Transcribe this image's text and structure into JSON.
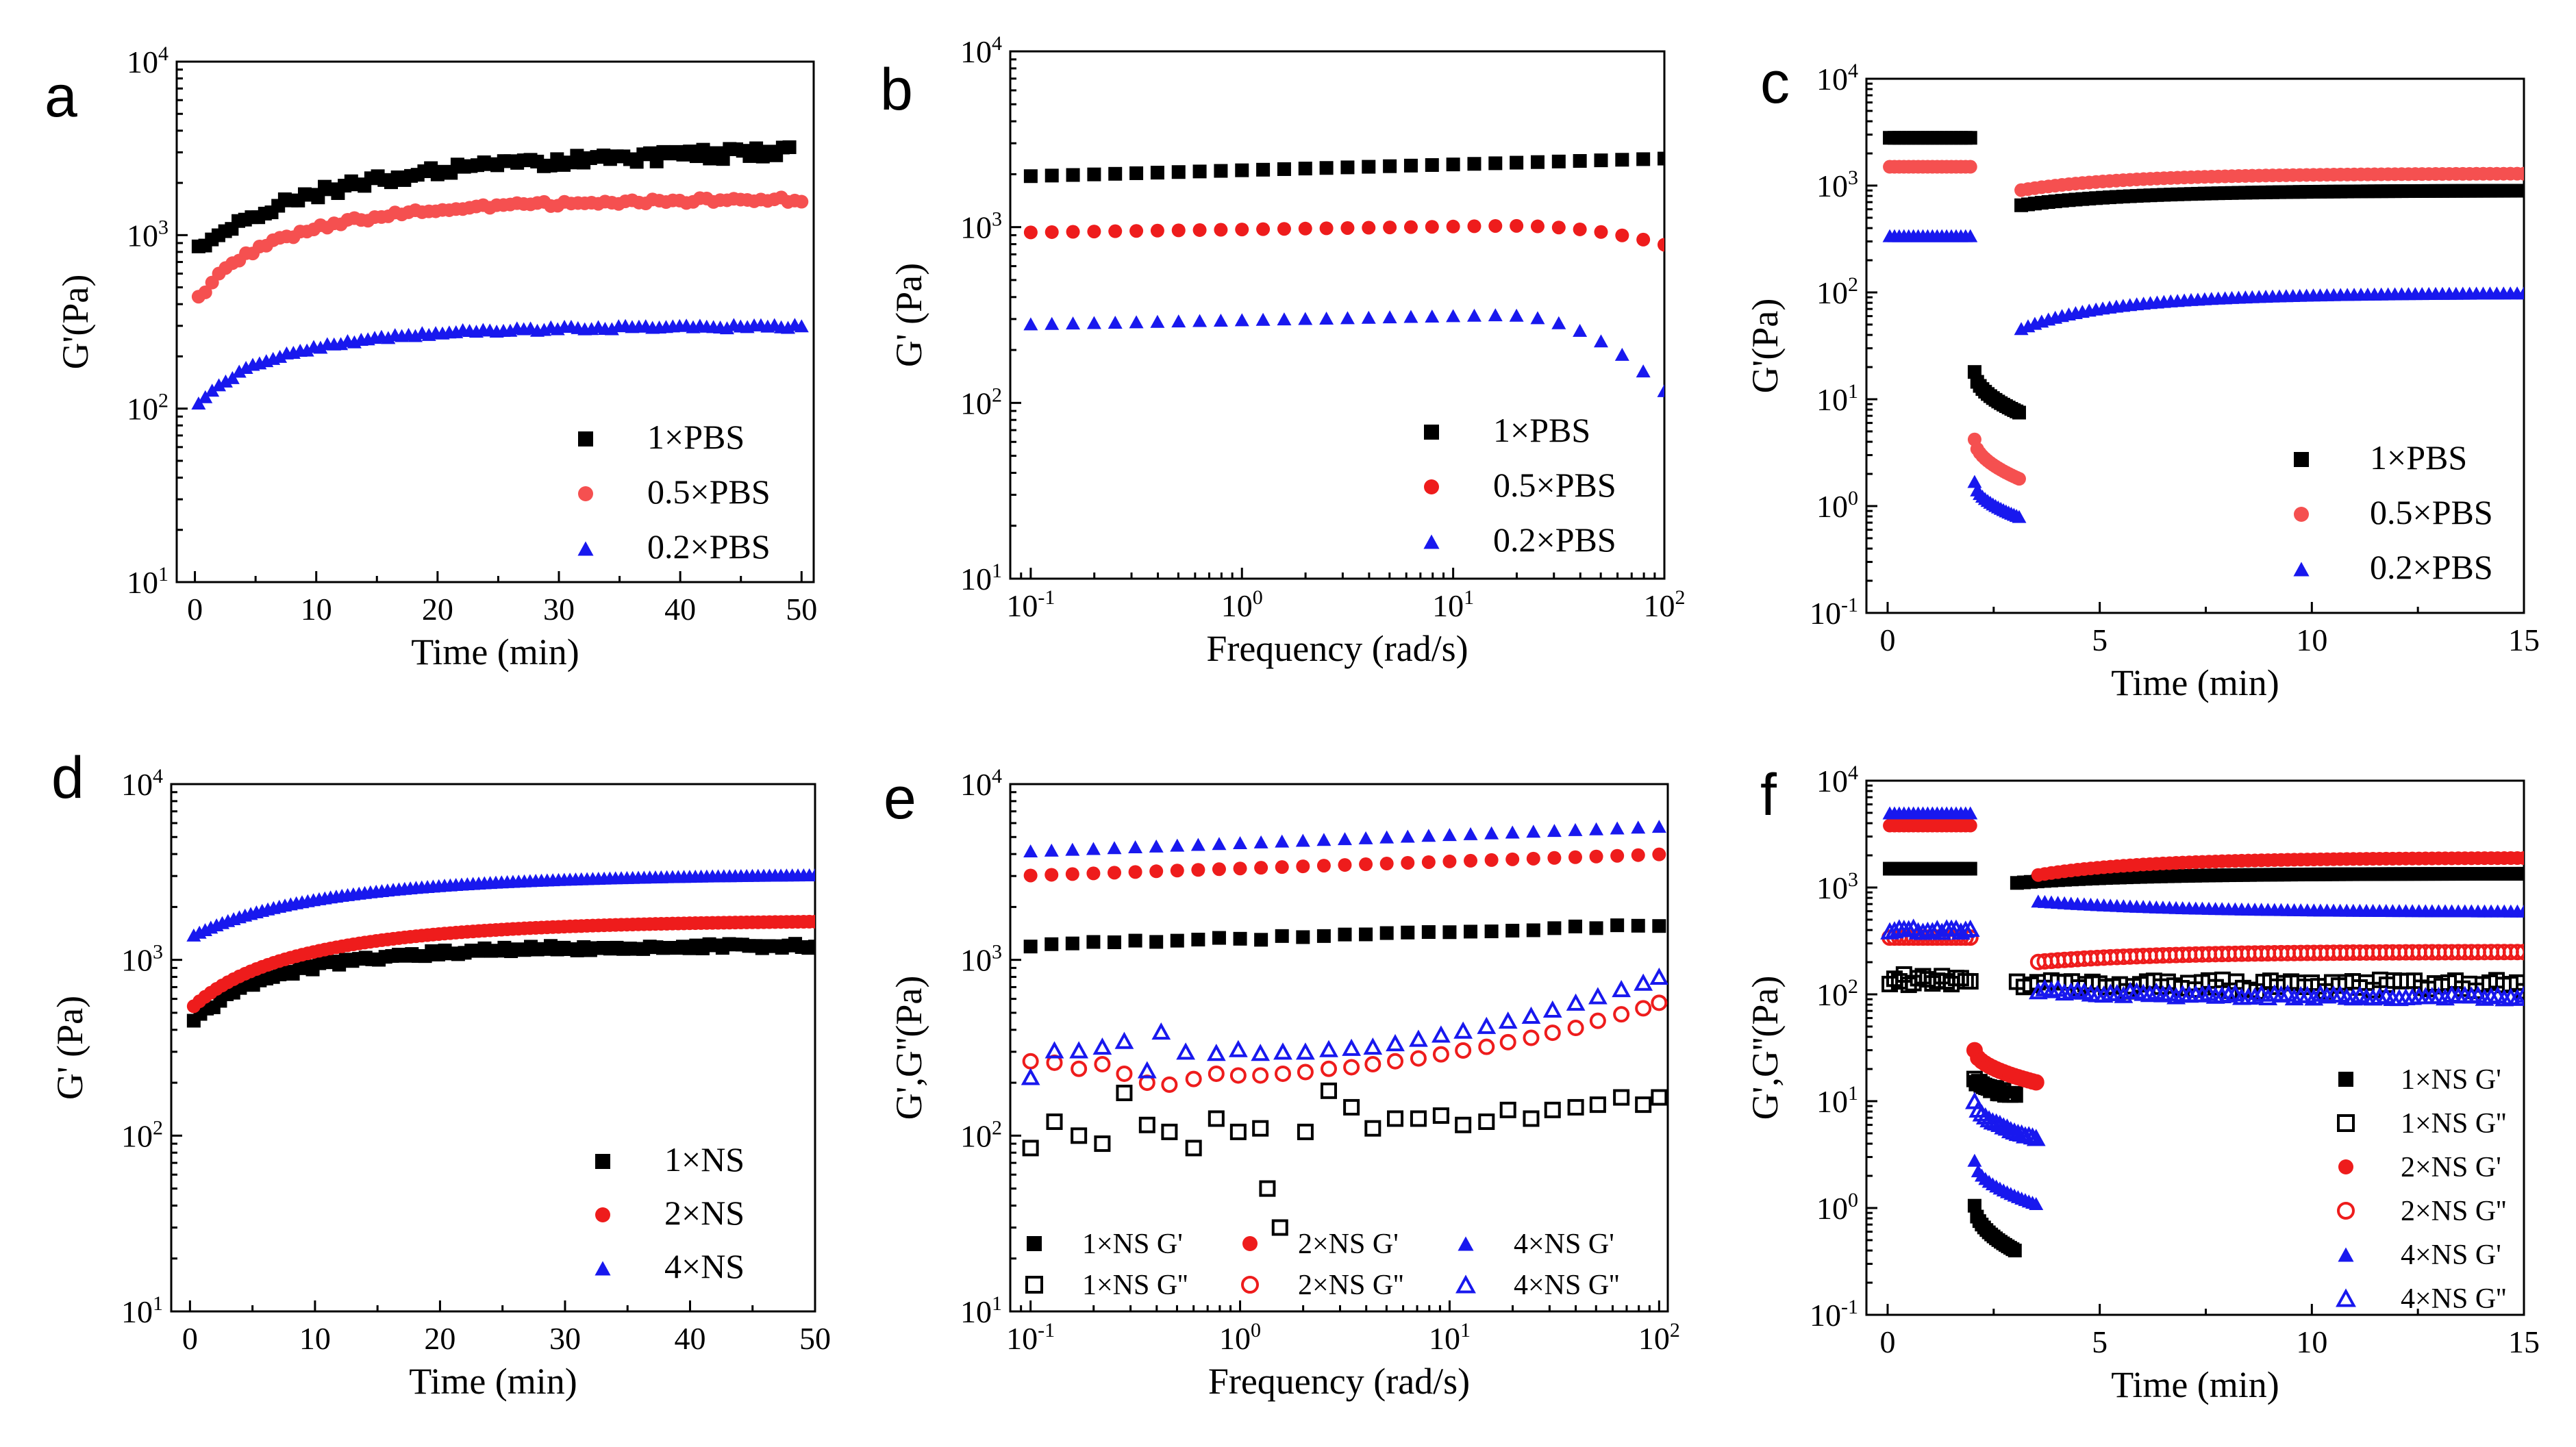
{
  "figure": {
    "colors": {
      "black": "#000000",
      "red": "#ee1c1c",
      "blue": "#1818ee",
      "lightred": "#f55050"
    }
  },
  "chart_data": [
    {
      "panel": "a",
      "type": "scatter",
      "xscale": "linear",
      "yscale": "log",
      "xlabel": "Time (min)",
      "ylabel": "G'(Pa)",
      "xlim": [
        -1.5,
        51
      ],
      "ylim": [
        10,
        10000
      ],
      "xticks": [
        0,
        10,
        20,
        30,
        40,
        50
      ],
      "yticks": [
        10,
        100,
        1000,
        10000
      ],
      "legend_position": "bottom-right",
      "series": [
        {
          "name": "1×PBS",
          "color": "#000000",
          "marker": "square",
          "filled": true,
          "curve": {
            "kind": "time",
            "x0": 0.3,
            "x1": 49,
            "n": 90,
            "a": 780,
            "b": 3000,
            "tau": 20,
            "noise": 0.06
          }
        },
        {
          "name": "0.5×PBS",
          "color": "#f55050",
          "marker": "circle",
          "filled": true,
          "curve": {
            "kind": "time",
            "x0": 0.3,
            "x1": 50,
            "n": 90,
            "a": 400,
            "b": 1600,
            "tau": 12,
            "noise": 0.03
          }
        },
        {
          "name": "0.2×PBS",
          "color": "#1818ee",
          "marker": "triangle",
          "filled": true,
          "curve": {
            "kind": "time",
            "x0": 0.3,
            "x1": 50,
            "n": 90,
            "a": 100,
            "b": 300,
            "tau": 10,
            "noise": 0.02
          }
        }
      ]
    },
    {
      "panel": "b",
      "type": "scatter",
      "xscale": "log",
      "yscale": "log",
      "xlabel": "Frequency (rad/s)",
      "ylabel": "G' (Pa)",
      "xlim": [
        0.08,
        100
      ],
      "ylim": [
        10,
        10000
      ],
      "xticks": [
        0.1,
        1,
        10,
        100
      ],
      "yticks": [
        10,
        100,
        1000,
        10000
      ],
      "legend_position": "bottom-right",
      "series": [
        {
          "name": "1×PBS",
          "color": "#000000",
          "marker": "square",
          "filled": true,
          "curve": {
            "kind": "freq",
            "n": 31,
            "logy0": 3.29,
            "logy1": 3.39,
            "drop": 0
          }
        },
        {
          "name": "0.5×PBS",
          "color": "#ee1c1c",
          "marker": "circle",
          "filled": true,
          "curve": {
            "kind": "freq",
            "n": 31,
            "logy0": 2.97,
            "logy1": 3.02,
            "drop": 0.12
          }
        },
        {
          "name": "0.2×PBS",
          "color": "#1818ee",
          "marker": "triangle",
          "filled": true,
          "curve": {
            "kind": "freq",
            "n": 31,
            "logy0": 2.45,
            "logy1": 2.52,
            "drop": 0.45
          }
        }
      ]
    },
    {
      "panel": "c",
      "type": "scatter",
      "xscale": "linear",
      "yscale": "log",
      "xlabel": "Time (min)",
      "ylabel": "G'(Pa)",
      "xlim": [
        -0.5,
        15
      ],
      "ylim": [
        0.1,
        10000
      ],
      "xticks": [
        0,
        5,
        10,
        15
      ],
      "yticks": [
        0.1,
        1,
        10,
        100,
        1000,
        10000
      ],
      "legend_position": "bottom-right",
      "series": [
        {
          "name": "1×PBS",
          "color": "#000000",
          "marker": "square",
          "filled": true,
          "curve": {
            "kind": "recovery",
            "pre": 2800,
            "brk0": 18,
            "brk1": 7.5,
            "rec0": 650,
            "rec1": 900,
            "noise": 0.0
          }
        },
        {
          "name": "0.5×PBS",
          "color": "#f55050",
          "marker": "circle",
          "filled": true,
          "curve": {
            "kind": "recovery",
            "pre": 1500,
            "brk0": 4.2,
            "brk1": 1.8,
            "rec0": 900,
            "rec1": 1300,
            "noise": 0.0
          }
        },
        {
          "name": "0.2×PBS",
          "color": "#1818ee",
          "marker": "triangle",
          "filled": true,
          "curve": {
            "kind": "recovery",
            "pre": 340,
            "brk0": 1.7,
            "brk1": 0.8,
            "rec0": 45,
            "rec1": 100,
            "noise": 0.0
          }
        }
      ]
    },
    {
      "panel": "d",
      "type": "scatter",
      "xscale": "linear",
      "yscale": "log",
      "xlabel": "Time (min)",
      "ylabel": "G' (Pa)",
      "xlim": [
        -1.5,
        50
      ],
      "ylim": [
        10,
        10000
      ],
      "xticks": [
        0,
        10,
        20,
        30,
        40,
        50
      ],
      "yticks": [
        10,
        100,
        1000,
        10000
      ],
      "legend_position": "bottom-right",
      "series": [
        {
          "name": "1×NS",
          "color": "#000000",
          "marker": "square",
          "filled": true,
          "curve": {
            "kind": "time",
            "x0": 0.3,
            "x1": 50,
            "n": 95,
            "a": 420,
            "b": 1200,
            "tau": 10,
            "noise": 0.03
          }
        },
        {
          "name": "2×NS",
          "color": "#ee1c1c",
          "marker": "circle",
          "filled": true,
          "curve": {
            "kind": "time",
            "x0": 0.3,
            "x1": 50,
            "n": 110,
            "a": 520,
            "b": 1650,
            "tau": 14,
            "noise": 0.0
          }
        },
        {
          "name": "4×NS",
          "color": "#1818ee",
          "marker": "triangle",
          "filled": true,
          "curve": {
            "kind": "time",
            "x0": 0.3,
            "x1": 50,
            "n": 110,
            "a": 1350,
            "b": 3050,
            "tau": 15,
            "noise": 0.0
          }
        }
      ]
    },
    {
      "panel": "e",
      "type": "scatter",
      "xscale": "log",
      "yscale": "log",
      "xlabel": "Frequency (rad/s)",
      "ylabel": "G',G''(Pa)",
      "xlim": [
        0.08,
        110
      ],
      "ylim": [
        10,
        10000
      ],
      "xticks": [
        0.1,
        1,
        10,
        100
      ],
      "yticks": [
        10,
        100,
        1000,
        10000
      ],
      "legend_position": "bottom",
      "series": [
        {
          "name": "1×NS G'",
          "color": "#000000",
          "marker": "square",
          "filled": true,
          "curve": {
            "kind": "freq",
            "n": 31,
            "logy0": 3.08,
            "logy1": 3.2,
            "drop": 0,
            "noise": 0.02
          }
        },
        {
          "name": "1×NS G''",
          "color": "#000000",
          "marker": "square",
          "filled": false,
          "points": [
            [
              0.1,
              85
            ],
            [
              0.13,
              120
            ],
            [
              0.17,
              100
            ],
            [
              0.22,
              90
            ],
            [
              0.28,
              175
            ],
            [
              0.36,
              115
            ],
            [
              0.46,
              105
            ],
            [
              0.6,
              85
            ],
            [
              0.77,
              125
            ],
            [
              0.98,
              105
            ],
            [
              1.25,
              110
            ],
            [
              1.35,
              50
            ],
            [
              1.55,
              30
            ],
            [
              2.05,
              105
            ],
            [
              2.65,
              180
            ],
            [
              3.4,
              145
            ],
            [
              4.3,
              110
            ],
            [
              5.5,
              125
            ],
            [
              7.1,
              125
            ],
            [
              9.1,
              130
            ],
            [
              11.6,
              115
            ],
            [
              15,
              120
            ],
            [
              19,
              140
            ],
            [
              24.5,
              125
            ],
            [
              31,
              140
            ],
            [
              40,
              145
            ],
            [
              51,
              150
            ],
            [
              66,
              165
            ],
            [
              84,
              150
            ],
            [
              100,
              165
            ]
          ]
        },
        {
          "name": "2×NS G'",
          "color": "#ee1c1c",
          "marker": "circle",
          "filled": true,
          "curve": {
            "kind": "freq",
            "n": 31,
            "logy0": 3.48,
            "logy1": 3.6,
            "drop": 0
          }
        },
        {
          "name": "2×NS G''",
          "color": "#ee1c1c",
          "marker": "circle",
          "filled": false,
          "points": [
            [
              0.1,
              265
            ],
            [
              0.13,
              260
            ],
            [
              0.17,
              240
            ],
            [
              0.22,
              255
            ],
            [
              0.28,
              225
            ],
            [
              0.36,
              200
            ],
            [
              0.46,
              195
            ],
            [
              0.6,
              210
            ],
            [
              0.77,
              225
            ],
            [
              0.98,
              220
            ],
            [
              1.25,
              220
            ],
            [
              1.6,
              225
            ],
            [
              2.05,
              230
            ],
            [
              2.65,
              240
            ],
            [
              3.4,
              245
            ],
            [
              4.3,
              255
            ],
            [
              5.5,
              265
            ],
            [
              7.1,
              275
            ],
            [
              9.1,
              290
            ],
            [
              11.6,
              305
            ],
            [
              15,
              320
            ],
            [
              19,
              340
            ],
            [
              24.5,
              360
            ],
            [
              31,
              385
            ],
            [
              40,
              410
            ],
            [
              51,
              450
            ],
            [
              66,
              490
            ],
            [
              84,
              530
            ],
            [
              100,
              570
            ]
          ]
        },
        {
          "name": "4×NS G'",
          "color": "#1818ee",
          "marker": "triangle",
          "filled": true,
          "curve": {
            "kind": "freq",
            "n": 31,
            "logy0": 3.62,
            "logy1": 3.76,
            "drop": 0
          }
        },
        {
          "name": "4×NS G''",
          "color": "#1818ee",
          "marker": "triangle",
          "filled": false,
          "points": [
            [
              0.1,
              215
            ],
            [
              0.13,
              305
            ],
            [
              0.17,
              305
            ],
            [
              0.22,
              320
            ],
            [
              0.28,
              345
            ],
            [
              0.36,
              235
            ],
            [
              0.42,
              390
            ],
            [
              0.55,
              300
            ],
            [
              0.77,
              295
            ],
            [
              0.98,
              310
            ],
            [
              1.25,
              295
            ],
            [
              1.6,
              300
            ],
            [
              2.05,
              300
            ],
            [
              2.65,
              310
            ],
            [
              3.4,
              315
            ],
            [
              4.3,
              320
            ],
            [
              5.5,
              335
            ],
            [
              7.1,
              355
            ],
            [
              9.1,
              375
            ],
            [
              11.6,
              395
            ],
            [
              15,
              420
            ],
            [
              19,
              450
            ],
            [
              24.5,
              480
            ],
            [
              31,
              520
            ],
            [
              40,
              570
            ],
            [
              51,
              620
            ],
            [
              66,
              680
            ],
            [
              84,
              740
            ],
            [
              100,
              800
            ]
          ]
        }
      ]
    },
    {
      "panel": "f",
      "type": "scatter",
      "xscale": "linear",
      "yscale": "log",
      "xlabel": "Time (min)",
      "ylabel": "G',G''(Pa)",
      "xlim": [
        -0.5,
        15
      ],
      "ylim": [
        0.1,
        10000
      ],
      "xticks": [
        0,
        5,
        10,
        15
      ],
      "yticks": [
        0.1,
        1,
        10,
        100,
        1000,
        10000
      ],
      "legend_position": "bottom-right",
      "series": [
        {
          "name": "1×NS G'",
          "color": "#000000",
          "marker": "square",
          "filled": true,
          "curve": {
            "kind": "recovery",
            "pre": 1500,
            "brk0": 1.05,
            "brk1": 0.4,
            "rec0": 1100,
            "rec1": 1350,
            "t1": 3.0,
            "noise": 0.0
          }
        },
        {
          "name": "1×NS G''",
          "color": "#000000",
          "marker": "square",
          "filled": false,
          "curve": {
            "kind": "recovery",
            "pre": 140,
            "brk0": 16,
            "brk1": 11.5,
            "rec0": 120,
            "rec1": 120,
            "t1": 3.0,
            "noise": 0.12
          }
        },
        {
          "name": "2×NS G'",
          "color": "#ee1c1c",
          "marker": "circle",
          "filled": true,
          "curve": {
            "kind": "recovery",
            "pre": 3800,
            "brk0": 30,
            "brk1": 15,
            "rec0": 1300,
            "rec1": 1900,
            "t1": 3.5,
            "noise": 0.0
          }
        },
        {
          "name": "2×NS G''",
          "color": "#ee1c1c",
          "marker": "circle",
          "filled": false,
          "curve": {
            "kind": "recovery",
            "pre": 340,
            "brk0": 30,
            "brk1": 15,
            "rec0": 200,
            "rec1": 250,
            "t1": 3.5,
            "noise": 0.0
          }
        },
        {
          "name": "4×NS G'",
          "color": "#1818ee",
          "marker": "triangle",
          "filled": true,
          "curve": {
            "kind": "recovery",
            "pre": 5000,
            "brk0": 2.8,
            "brk1": 1.1,
            "rec0": 750,
            "rec1": 600,
            "t1": 3.5,
            "noise": 0.0
          }
        },
        {
          "name": "4×NS G''",
          "color": "#1818ee",
          "marker": "triangle",
          "filled": false,
          "curve": {
            "kind": "recovery",
            "pre": 400,
            "brk0": 10,
            "brk1": 4.5,
            "rec0": 110,
            "rec1": 95,
            "t1": 3.5,
            "noise": 0.04
          }
        }
      ]
    }
  ]
}
